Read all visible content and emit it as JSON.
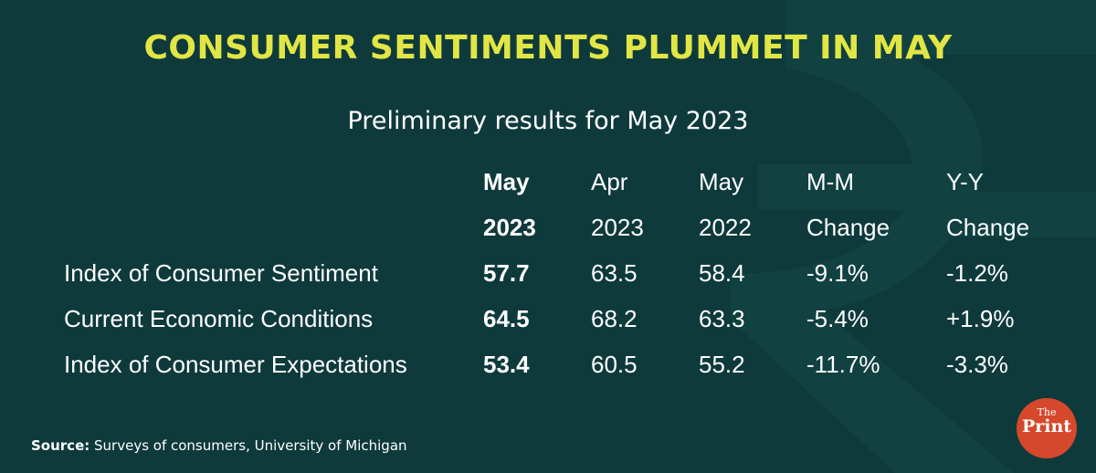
{
  "title": "CONSUMER SENTIMENTS PLUMMET IN MAY",
  "subtitle": "Preliminary results for May 2023",
  "source_label": "Source:",
  "source_text": " Surveys of consumers, University of Michigan",
  "logo": {
    "small": "The",
    "main": "Print"
  },
  "colors": {
    "background": "#0f3a3b",
    "title": "#e1e645",
    "text": "#ffffff",
    "logo": "#d5482b"
  },
  "chart_data": {
    "type": "table",
    "columns": [
      {
        "line1": "May",
        "line2": "2023"
      },
      {
        "line1": "Apr",
        "line2": "2023"
      },
      {
        "line1": "May",
        "line2": "2022"
      },
      {
        "line1": "M-M",
        "line2": "Change"
      },
      {
        "line1": "Y-Y",
        "line2": "Change"
      }
    ],
    "rows": [
      {
        "label": "Index of Consumer Sentiment",
        "values": [
          "57.7",
          "63.5",
          "58.4",
          "-9.1%",
          "-1.2%"
        ]
      },
      {
        "label": "Current Economic Conditions",
        "values": [
          "64.5",
          "68.2",
          "63.3",
          "-5.4%",
          "+1.9%"
        ]
      },
      {
        "label": "Index of Consumer Expectations",
        "values": [
          "53.4",
          "60.5",
          "55.2",
          "-11.7%",
          "-3.3%"
        ]
      }
    ]
  }
}
